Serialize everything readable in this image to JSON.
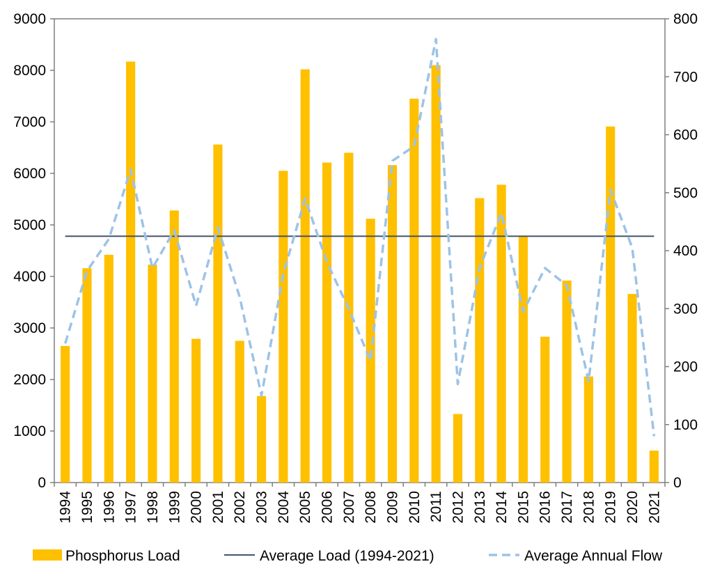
{
  "chart_data": {
    "type": "bar",
    "title": "",
    "xlabel": "",
    "ylabel": "",
    "categories": [
      "1994",
      "1995",
      "1996",
      "1997",
      "1998",
      "1999",
      "2000",
      "2001",
      "2002",
      "2003",
      "2004",
      "2005",
      "2006",
      "2007",
      "2008",
      "2009",
      "2010",
      "2011",
      "2012",
      "2013",
      "2014",
      "2015",
      "2016",
      "2017",
      "2018",
      "2019",
      "2020",
      "2021"
    ],
    "series": [
      {
        "name": "Phosphorus Load",
        "type": "bar",
        "axis": "left",
        "color": "#FFC000",
        "values": [
          2650,
          4160,
          4420,
          8170,
          4230,
          5280,
          2790,
          6560,
          2750,
          1680,
          6050,
          8020,
          6210,
          6400,
          5120,
          6160,
          7450,
          8100,
          1330,
          5520,
          5780,
          4790,
          2830,
          3920,
          2060,
          6910,
          3660,
          620
        ]
      },
      {
        "name": "Average Load (1994-2021)",
        "type": "line",
        "axis": "left",
        "color": "#44546A",
        "values": [
          4780,
          4780,
          4780,
          4780,
          4780,
          4780,
          4780,
          4780,
          4780,
          4780,
          4780,
          4780,
          4780,
          4780,
          4780,
          4780,
          4780,
          4780,
          4780,
          4780,
          4780,
          4780,
          4780,
          4780,
          4780,
          4780,
          4780,
          4780
        ]
      },
      {
        "name": "Average Annual Flow",
        "type": "line",
        "dash": "dashed",
        "axis": "right",
        "color": "#9DC3E6",
        "values": [
          240,
          365,
          420,
          540,
          370,
          435,
          305,
          440,
          320,
          150,
          360,
          490,
          380,
          300,
          210,
          555,
          580,
          765,
          170,
          370,
          465,
          295,
          370,
          340,
          175,
          505,
          405,
          80
        ]
      }
    ],
    "y_left": {
      "ylim": [
        0,
        9000
      ],
      "ticks": [
        "0",
        "1000",
        "2000",
        "3000",
        "4000",
        "5000",
        "6000",
        "7000",
        "8000",
        "9000"
      ]
    },
    "y_right": {
      "ylim": [
        0,
        800
      ],
      "ticks": [
        "0",
        "100",
        "200",
        "300",
        "400",
        "500",
        "600",
        "700",
        "800"
      ]
    },
    "grid": false,
    "legend_position": "bottom"
  }
}
